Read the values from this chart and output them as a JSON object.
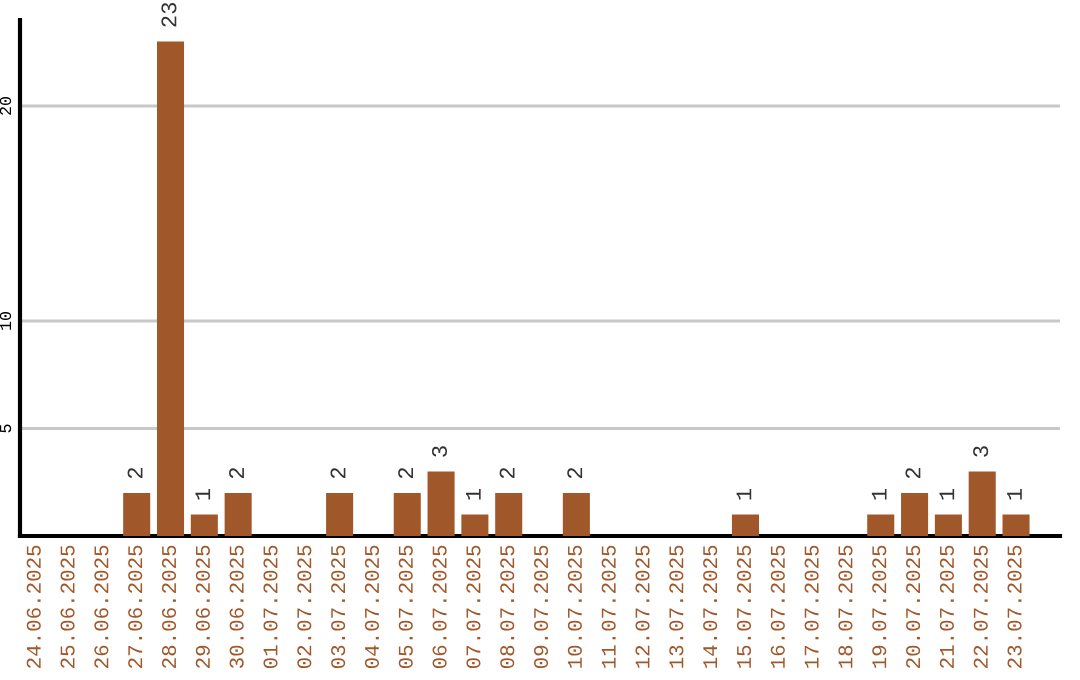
{
  "chart_data": {
    "type": "bar",
    "categories": [
      "24.06.2025",
      "25.06.2025",
      "26.06.2025",
      "27.06.2025",
      "28.06.2025",
      "29.06.2025",
      "30.06.2025",
      "01.07.2025",
      "02.07.2025",
      "03.07.2025",
      "04.07.2025",
      "05.07.2025",
      "06.07.2025",
      "07.07.2025",
      "08.07.2025",
      "09.07.2025",
      "10.07.2025",
      "11.07.2025",
      "12.07.2025",
      "13.07.2025",
      "14.07.2025",
      "15.07.2025",
      "16.07.2025",
      "17.07.2025",
      "18.07.2025",
      "19.07.2025",
      "20.07.2025",
      "21.07.2025",
      "22.07.2025",
      "23.07.2025"
    ],
    "values": [
      0,
      0,
      0,
      2,
      23,
      1,
      2,
      0,
      0,
      2,
      0,
      2,
      3,
      1,
      2,
      0,
      2,
      0,
      0,
      0,
      0,
      1,
      0,
      0,
      0,
      1,
      2,
      1,
      3,
      1
    ],
    "value_labels": [
      null,
      null,
      null,
      "2",
      "23",
      "1",
      "2",
      null,
      null,
      "2",
      null,
      "2",
      "3",
      "1",
      "2",
      null,
      "2",
      null,
      null,
      null,
      null,
      "1",
      null,
      null,
      null,
      "1",
      "2",
      "1",
      "3",
      "1"
    ],
    "color": "#a0582a",
    "ylim": [
      0,
      24
    ],
    "yticks": [
      5,
      10,
      20
    ],
    "grid": "y",
    "legend": false
  }
}
